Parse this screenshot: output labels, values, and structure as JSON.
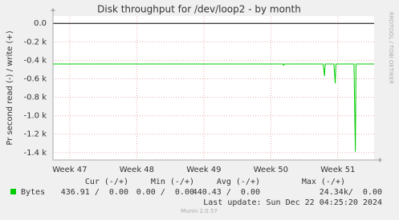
{
  "chart_data": {
    "type": "line",
    "title": "Disk throughput for /dev/loop2 - by month",
    "y_label": "Pr second read (-) / write (+)",
    "watermark": "RRDTOOL / TOBI OETIKER",
    "xlim": [
      46.75,
      51.54
    ],
    "xticks": [
      {
        "value": 47,
        "label": "Week 47"
      },
      {
        "value": 48,
        "label": "Week 48"
      },
      {
        "value": 49,
        "label": "Week 49"
      },
      {
        "value": 50,
        "label": "Week 50"
      },
      {
        "value": 51,
        "label": "Week 51"
      }
    ],
    "ylim": [
      -1.48,
      0.08
    ],
    "yticks": [
      {
        "value": 0,
        "label": "0.0"
      },
      {
        "value": -0.2,
        "label": "-0.2 k"
      },
      {
        "value": -0.4,
        "label": "-0.4 k"
      },
      {
        "value": -0.6,
        "label": "-0.6 k"
      },
      {
        "value": -0.8,
        "label": "-0.8 k"
      },
      {
        "value": -1.0,
        "label": "-1.0 k"
      },
      {
        "value": -1.2,
        "label": "-1.2 k"
      },
      {
        "value": -1.4,
        "label": "-1.4 k"
      }
    ],
    "grid": true,
    "series": [
      {
        "name": "Bytes",
        "color": "#00cc00",
        "x": [
          46.75,
          50.18,
          50.19,
          50.2,
          50.78,
          50.8,
          50.81,
          50.94,
          50.96,
          50.97,
          51.24,
          51.26,
          51.27,
          51.54
        ],
        "values": [
          -0.44,
          -0.44,
          -0.455,
          -0.44,
          -0.44,
          -0.57,
          -0.44,
          -0.44,
          -0.65,
          -0.44,
          -0.44,
          -1.39,
          -0.44,
          -0.44
        ],
        "stats": [
          "436.91 /  0.00",
          "0.00 /  0.00",
          "440.43 /  0.00",
          "24.34k/  0.00"
        ]
      }
    ],
    "stat_headers": [
      "Cur (-/+)",
      "Min (-/+)",
      "Avg (-/+)",
      "Max (-/+)"
    ],
    "last_update": "Last update: Sun Dec 22 04:25:20 2024",
    "footer": "Munin 2.0.57"
  }
}
